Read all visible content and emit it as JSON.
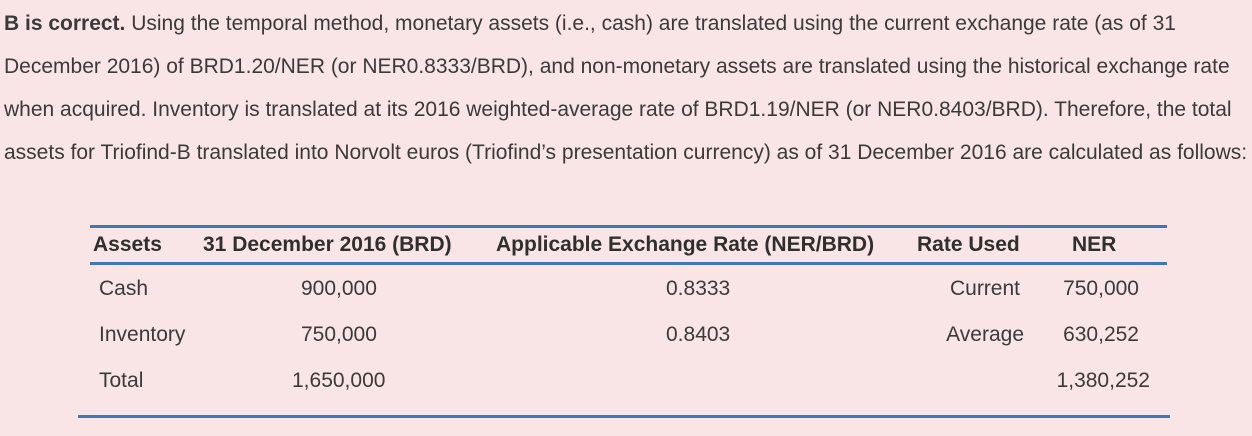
{
  "explanation": {
    "lead": "B is correct.",
    "body": " Using the temporal method, monetary assets (i.e., cash) are translated using the current exchange rate (as of 31 December 2016) of BRD1.20/NER (or NER0.8333/BRD), and non-monetary assets are translated using the historical exchange rate when acquired. Inventory is translated at its 2016 weighted-average rate of BRD1.19/NER (or NER0.8403/BRD). Therefore, the total assets for Triofind-B translated into Norvolt euros (Triofind’s presentation currency) as of 31 December 2016 are calculated as follows:"
  },
  "table": {
    "headers": {
      "assets": "Assets",
      "date": "31 December 2016 (BRD)",
      "rate": "Applicable Exchange Rate (NER/BRD)",
      "used": "Rate Used",
      "ner": "NER"
    },
    "rows": [
      {
        "asset": "Cash",
        "brd": "900,000",
        "rate": "0.8333",
        "used": "Current",
        "ner": "750,000"
      },
      {
        "asset": "Inventory",
        "brd": "750,000",
        "rate": "0.8403",
        "used": "Average",
        "ner": "630,252"
      },
      {
        "asset": "Total",
        "brd": "1,650,000",
        "rate": "",
        "used": "",
        "ner": "1,380,252"
      }
    ]
  },
  "colors": {
    "background": "#f9e5e6",
    "rule": "#3f78b8",
    "text": "#3a3a3a"
  }
}
